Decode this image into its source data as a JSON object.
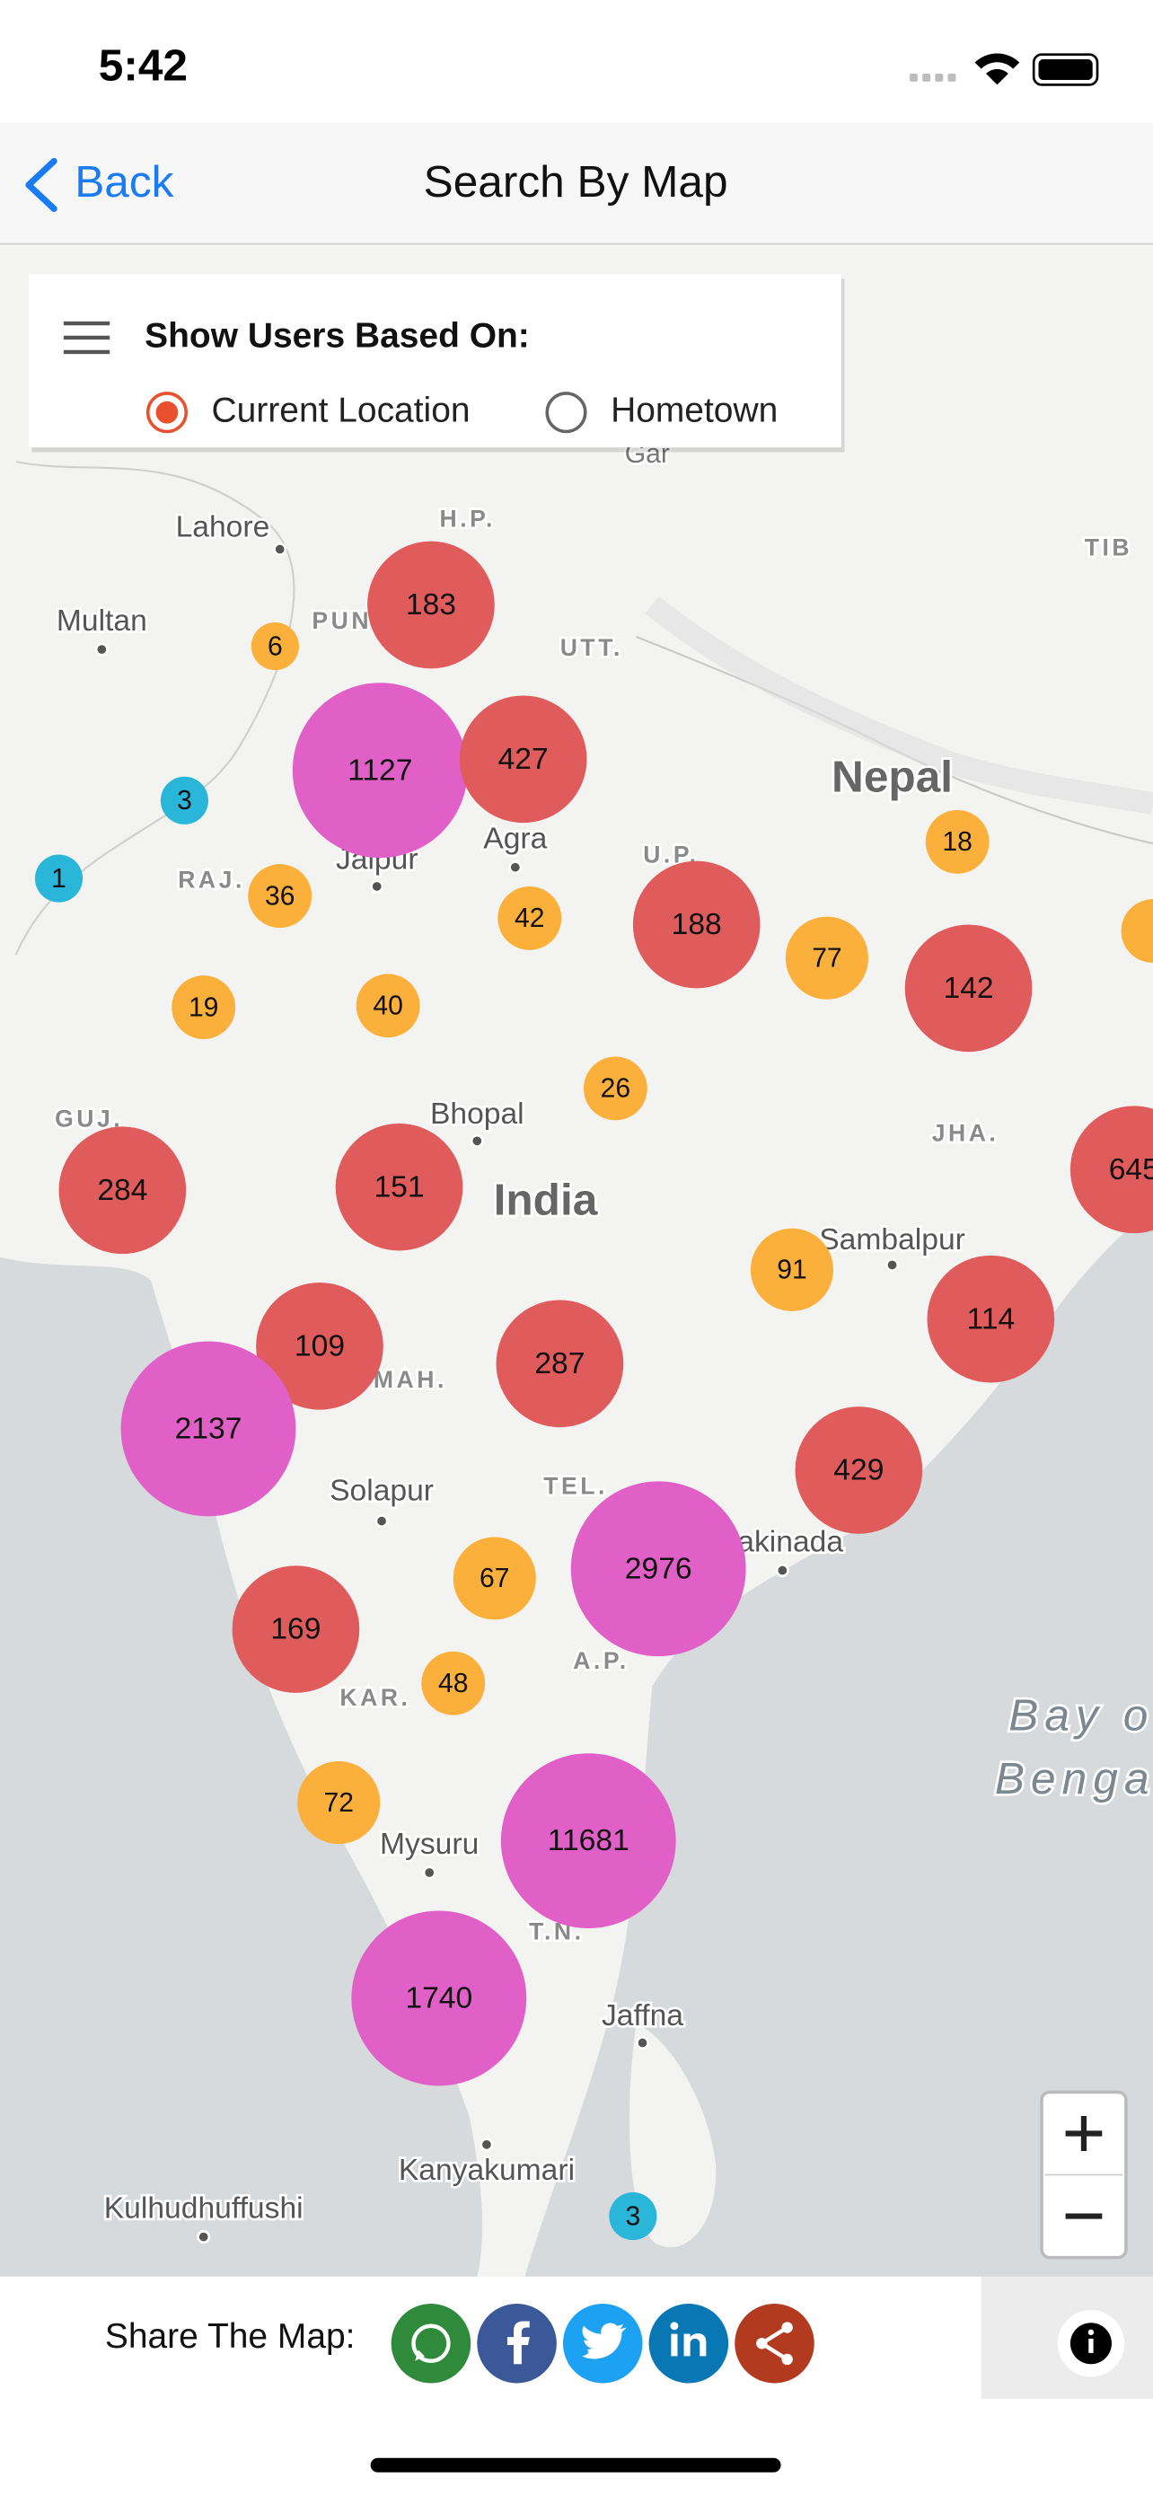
{
  "status_bar": {
    "time": "5:42"
  },
  "nav": {
    "back": "Back",
    "title": "Search By Map"
  },
  "filter": {
    "heading": "Show Users Based On:",
    "options": [
      {
        "label": "Current Location",
        "selected": true
      },
      {
        "label": "Hometown",
        "selected": false
      }
    ]
  },
  "map": {
    "places": [
      "Gar",
      "TIB",
      "Lahore",
      "H.P.",
      "Multan",
      "PUN",
      "UTT.",
      "Nepal",
      "Jaipur",
      "Agra",
      "RAJ.",
      "U.P.",
      "GUJ.",
      "Bhopal",
      "India",
      "JHA.",
      "Sambalpur",
      "MAH.",
      "Solapur",
      "TEL.",
      "akinada",
      "A.P.",
      "KAR.",
      "Mysuru",
      "T.N.",
      "Jaffna",
      "Kanyakumari",
      "Kulhudhuffushi",
      "Bay o",
      "Benga"
    ],
    "clusters": [
      {
        "count": 183,
        "color": "#e05c5c"
      },
      {
        "count": 6,
        "color": "#fbb03b"
      },
      {
        "count": 1127,
        "color": "#e060c8"
      },
      {
        "count": 427,
        "color": "#e05c5c"
      },
      {
        "count": 3,
        "color": "#29b6d9"
      },
      {
        "count": 1,
        "color": "#29b6d9"
      },
      {
        "count": 36,
        "color": "#fbb03b"
      },
      {
        "count": 42,
        "color": "#fbb03b"
      },
      {
        "count": 188,
        "color": "#e05c5c"
      },
      {
        "count": 77,
        "color": "#fbb03b"
      },
      {
        "count": 18,
        "color": "#fbb03b"
      },
      {
        "count": 142,
        "color": "#e05c5c"
      },
      {
        "count": 19,
        "color": "#fbb03b"
      },
      {
        "count": 40,
        "color": "#fbb03b"
      },
      {
        "count": 26,
        "color": "#fbb03b"
      },
      {
        "count": 284,
        "color": "#e05c5c"
      },
      {
        "count": 151,
        "color": "#e05c5c"
      },
      {
        "count": 645,
        "color": "#e05c5c"
      },
      {
        "count": 91,
        "color": "#fbb03b"
      },
      {
        "count": 114,
        "color": "#e05c5c"
      },
      {
        "count": 109,
        "color": "#e05c5c"
      },
      {
        "count": 287,
        "color": "#e05c5c"
      },
      {
        "count": 2137,
        "color": "#e060c8"
      },
      {
        "count": 429,
        "color": "#e05c5c"
      },
      {
        "count": 2976,
        "color": "#e060c8"
      },
      {
        "count": 67,
        "color": "#fbb03b"
      },
      {
        "count": 169,
        "color": "#e05c5c"
      },
      {
        "count": 48,
        "color": "#fbb03b"
      },
      {
        "count": 72,
        "color": "#fbb03b"
      },
      {
        "count": 11681,
        "color": "#e060c8"
      },
      {
        "count": 1740,
        "color": "#e060c8"
      },
      {
        "count": 3,
        "color": "#29b6d9"
      }
    ]
  },
  "share": {
    "label": "Share The Map:"
  }
}
